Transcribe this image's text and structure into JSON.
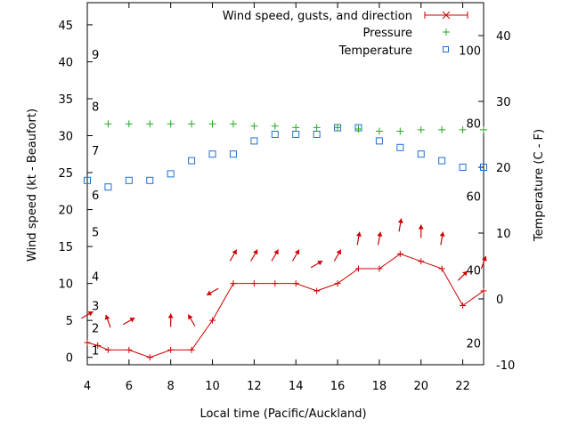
{
  "chart_data": {
    "type": "line",
    "xlabel": "Local time (Pacific/Auckland)",
    "ylabel_left": "Wind speed (kt - Beaufort)",
    "ylabel_right": "Temperature (C - F)",
    "xlim": [
      4,
      23
    ],
    "ylim_left": [
      -1,
      48
    ],
    "ylim_right": [
      -10,
      45
    ],
    "x_ticks": [
      4,
      6,
      8,
      10,
      12,
      14,
      16,
      18,
      20,
      22
    ],
    "y_ticks_left": [
      0,
      5,
      10,
      15,
      20,
      25,
      30,
      35,
      40,
      45
    ],
    "y_ticks_right": [
      -10,
      0,
      10,
      20,
      30,
      40
    ],
    "beaufort_labels": [
      {
        "label": "1",
        "kt": 1
      },
      {
        "label": "2",
        "kt": 4
      },
      {
        "label": "3",
        "kt": 7
      },
      {
        "label": "4",
        "kt": 11
      },
      {
        "label": "5",
        "kt": 17
      },
      {
        "label": "6",
        "kt": 22
      },
      {
        "label": "7",
        "kt": 28
      },
      {
        "label": "8",
        "kt": 34
      },
      {
        "label": "9",
        "kt": 41
      }
    ],
    "fahrenheit_labels": [
      {
        "label": "20",
        "c": -6.7
      },
      {
        "label": "40",
        "c": 4.4
      },
      {
        "label": "60",
        "c": 15.6
      },
      {
        "label": "80",
        "c": 26.7
      },
      {
        "label": "100",
        "c": 37.8
      }
    ],
    "legend": [
      "Wind speed, gusts, and direction",
      "Pressure",
      "Temperature"
    ],
    "series": [
      {
        "name": "Wind speed, gusts, and direction",
        "color": "#cc0000",
        "x": [
          4,
          4.5,
          5,
          6,
          7,
          8,
          9,
          10,
          11,
          12,
          13,
          14,
          15,
          16,
          17,
          18,
          19,
          20,
          21,
          22,
          23
        ],
        "values": [
          2,
          1.6,
          1,
          1,
          0,
          1,
          1,
          5,
          10,
          10,
          10,
          10,
          9,
          10,
          12,
          12,
          14,
          13,
          12,
          7,
          9
        ],
        "direction_deg": [
          270,
          90,
          340,
          60,
          160,
          160,
          220,
          220,
          220,
          210,
          230,
          220,
          200,
          140,
          170,
          160,
          180,
          170,
          210,
          225
        ]
      },
      {
        "name": "Pressure",
        "color": "#22aa22",
        "x": [
          5,
          6,
          7,
          8,
          9,
          10,
          11,
          12,
          13,
          14,
          15,
          16,
          17,
          18,
          19,
          20,
          21,
          22,
          23
        ],
        "values": [
          31.6,
          31.6,
          31.6,
          31.6,
          31.6,
          31.6,
          31.6,
          31.3,
          31.3,
          31.1,
          31.1,
          31.1,
          30.9,
          30.6,
          30.6,
          30.8,
          30.8,
          30.8,
          30.8
        ]
      },
      {
        "name": "Temperature",
        "color": "#1f6fd1",
        "x": [
          4,
          5,
          6,
          7,
          8,
          9,
          10,
          11,
          12,
          13,
          14,
          15,
          16,
          17,
          18,
          19,
          20,
          21,
          22,
          23
        ],
        "values": [
          18,
          17,
          18,
          18,
          19,
          21,
          22,
          22,
          24,
          25,
          25,
          25,
          26,
          26,
          24,
          23,
          22,
          21,
          20,
          20
        ]
      }
    ]
  }
}
